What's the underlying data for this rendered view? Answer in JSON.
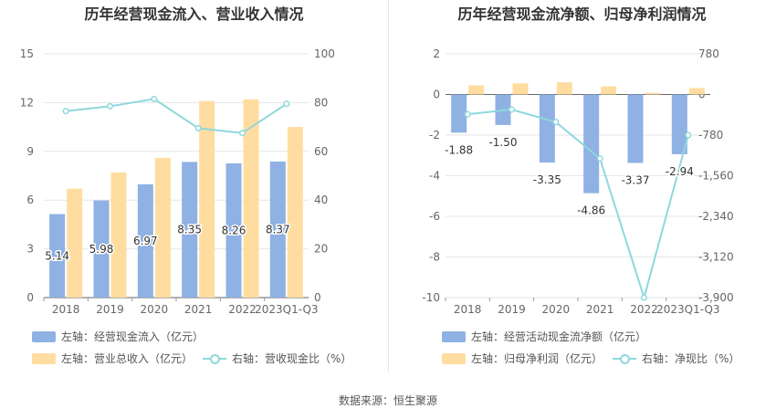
{
  "left_legend": {
    "item1": "左轴：经营现金流入（亿元）",
    "item2": "左轴：营业总收入（亿元）",
    "item3": "右轴：营收现金比（%）"
  },
  "right_legend": {
    "item1": "左轴：经营活动现金流净额（亿元）",
    "item2": "左轴：归母净利润（亿元）",
    "item3": "右轴：净现比（%）"
  },
  "source": "数据来源：恒生聚源",
  "colors": {
    "blue": "#8fb1e3",
    "orange": "#ffdda0",
    "line": "#8ed8dc",
    "grid": "#e6e6e6",
    "axis": "#999999"
  },
  "chart_data": [
    {
      "type": "bar",
      "title": "历年经营现金流入、营业收入情况",
      "categories": [
        "2018",
        "2019",
        "2020",
        "2021",
        "2022",
        "2023Q1-Q3"
      ],
      "ylim": [
        0,
        15
      ],
      "yticks": [
        "0",
        "3",
        "6",
        "9",
        "12",
        "15"
      ],
      "y2lim": [
        0,
        100
      ],
      "y2ticks": [
        "0",
        "20",
        "40",
        "60",
        "80",
        "100"
      ],
      "series": [
        {
          "name": "经营现金流入",
          "axis": "left",
          "values": [
            5.14,
            5.98,
            6.97,
            8.35,
            8.26,
            8.37
          ],
          "labels": [
            "5.14",
            "5.98",
            "6.97",
            "8.35",
            "8.26",
            "8.37"
          ]
        },
        {
          "name": "营业总收入",
          "axis": "left",
          "values": [
            6.7,
            7.7,
            8.6,
            12.1,
            12.2,
            10.5
          ]
        },
        {
          "name": "营收现金比",
          "axis": "right",
          "type": "line",
          "values": [
            76.5,
            78.5,
            81.5,
            69.5,
            67.5,
            79.5
          ]
        }
      ]
    },
    {
      "type": "bar",
      "title": "历年经营现金流净额、归母净利润情况",
      "categories": [
        "2018",
        "2019",
        "2020",
        "2021",
        "2022",
        "2023Q1-Q3"
      ],
      "ylim": [
        -10,
        2
      ],
      "yticks": [
        "-10",
        "-8",
        "-6",
        "-4",
        "-2",
        "0",
        "2"
      ],
      "y2lim": [
        -3900,
        780
      ],
      "y2ticks": [
        "-3,900",
        "-3,120",
        "-2,340",
        "-1,560",
        "-780",
        "0",
        "780"
      ],
      "series": [
        {
          "name": "经营活动现金流净额",
          "axis": "left",
          "values": [
            -1.88,
            -1.5,
            -3.35,
            -4.86,
            -3.37,
            -2.94
          ],
          "labels": [
            "-1.88",
            "-1.50",
            "-3.35",
            "-4.86",
            "-3.37",
            "-2.94"
          ]
        },
        {
          "name": "归母净利润",
          "axis": "left",
          "values": [
            0.45,
            0.55,
            0.6,
            0.4,
            0.08,
            0.32
          ]
        },
        {
          "name": "净现比",
          "axis": "right",
          "type": "line",
          "values": [
            -380,
            -290,
            -530,
            -1230,
            -3900,
            -780
          ]
        }
      ]
    }
  ]
}
